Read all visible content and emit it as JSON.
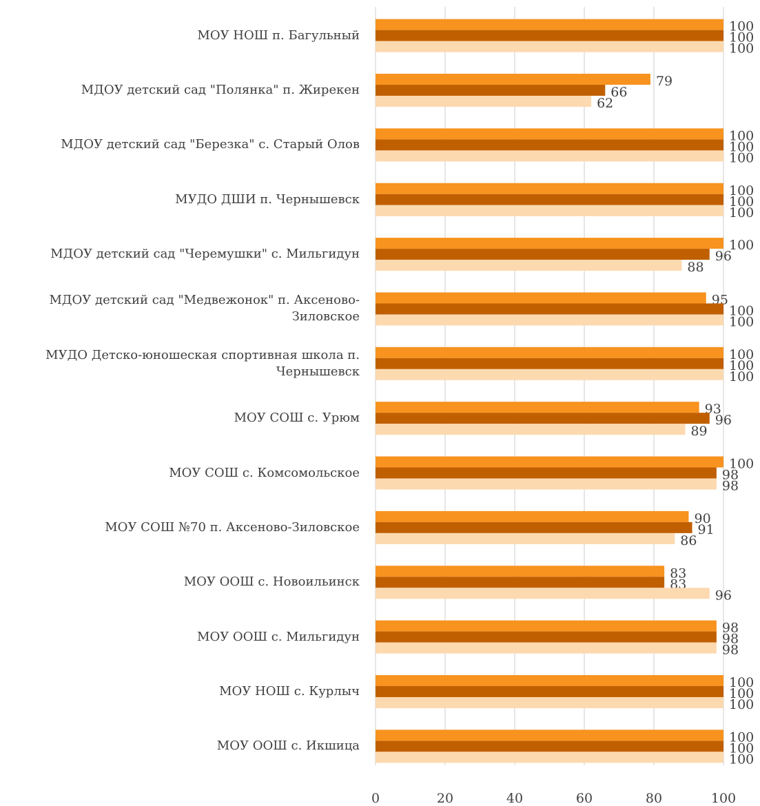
{
  "chart_data": {
    "type": "hbar",
    "categories": [
      "МОУ НОШ п. Багульный",
      "МДОУ детский сад \"Полянка\" п. Жирекен",
      "МДОУ детский сад \"Березка\"  с. Старый Олов",
      "МУДО ДШИ п. Чернышевск",
      "МДОУ  детский сад \"Черемушки\" с. Мильгидун",
      "МДОУ детский сад \"Медвежонок\"  п. Аксеново-Зиловское",
      "МУДО Детско-юношеская спортивная школа п. Чернышевск",
      "МОУ СОШ с. Урюм",
      "МОУ СОШ с. Комсомольское",
      "МОУ СОШ №70 п. Аксеново-Зиловское",
      "МОУ ООШ с. Новоильинск",
      "МОУ ООШ с. Мильгидун",
      "МОУ НОШ с. Курлыч",
      "МОУ ООШ с. Икшица"
    ],
    "series": [
      {
        "color": "#f7931e",
        "values": [
          100,
          79,
          100,
          100,
          100,
          95,
          100,
          93,
          100,
          90,
          83,
          98,
          100,
          100
        ]
      },
      {
        "color": "#c05f00",
        "values": [
          100,
          66,
          100,
          100,
          96,
          100,
          100,
          96,
          98,
          91,
          83,
          98,
          100,
          100
        ]
      },
      {
        "color": "#fdd9b0",
        "values": [
          100,
          62,
          100,
          100,
          88,
          100,
          100,
          89,
          98,
          86,
          96,
          98,
          100,
          100
        ]
      }
    ],
    "xlim": [
      0,
      100
    ],
    "xticks": [
      0,
      20,
      40,
      60,
      80,
      100
    ],
    "grid": true
  }
}
